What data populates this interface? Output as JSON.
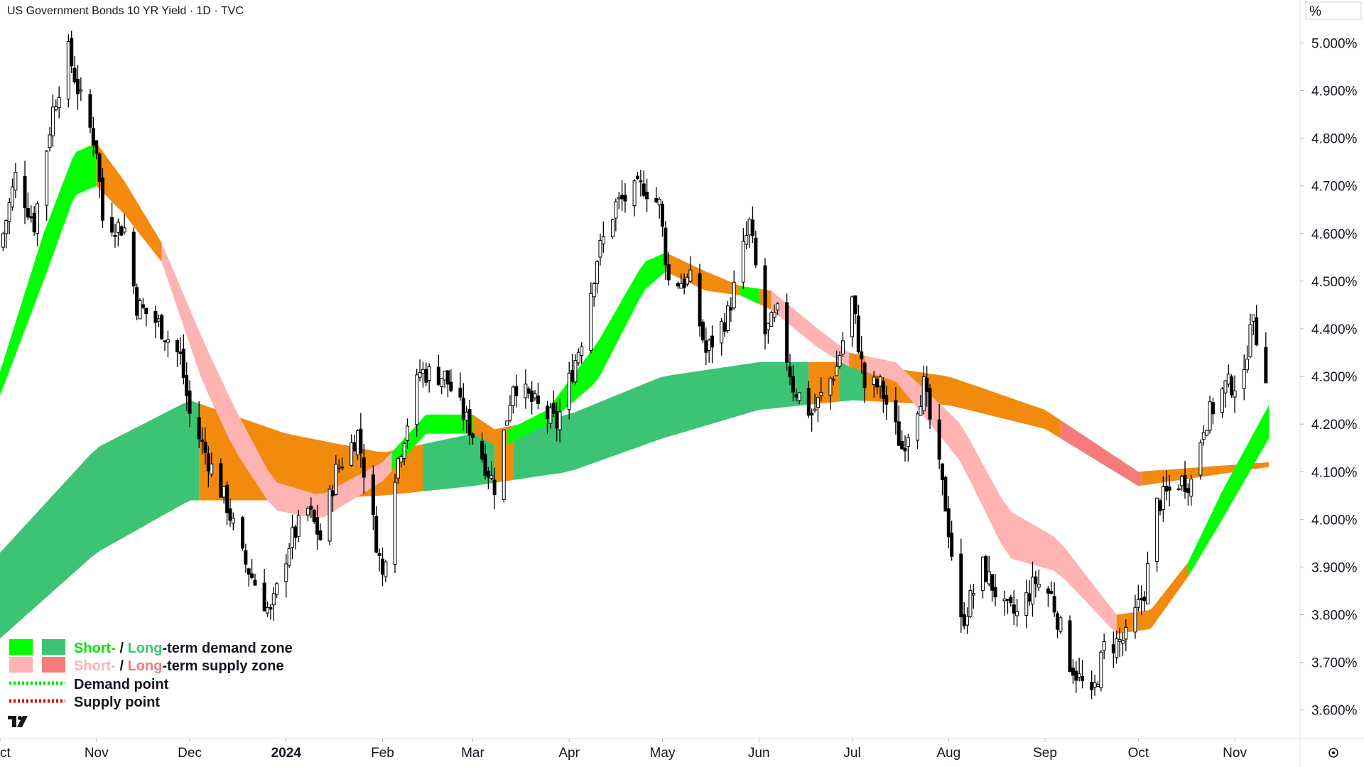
{
  "header": {
    "title": "US Government Bonds 10 YR Yield · 1D · TVC"
  },
  "price_axis": {
    "unit_label": "%"
  },
  "time_axis": {
    "labels": [
      "Oct",
      "Nov",
      "Dec",
      "2024",
      "Feb",
      "Mar",
      "Apr",
      "May",
      "Jun",
      "Jul",
      "Aug",
      "Sep",
      "Oct",
      "Nov"
    ]
  },
  "legend": {
    "demand_zone": {
      "short": "Short-",
      "sep": " / ",
      "long": "Long",
      "rest": "-term demand zone"
    },
    "supply_zone": {
      "short": "Short-",
      "sep": " / ",
      "long": "Long",
      "rest": "-term supply zone"
    },
    "demand_point": "Demand point",
    "supply_point": "Supply point"
  },
  "logo": {
    "text": "TV",
    "icon": "tradingview-logo"
  },
  "settings_icon": "gear-icon",
  "colors": {
    "short_demand": "#00ff00",
    "long_demand": "#3cc474",
    "short_supply": "#ffb3b3",
    "long_supply": "#f57a7a",
    "neutral": "#f28a0e",
    "candle_up": "#ffffff",
    "candle_down": "#000000"
  },
  "chart_data": {
    "type": "candlestick",
    "title": "US Government Bonds 10 YR Yield · 1D · TVC",
    "ylabel": "%",
    "ylim": [
      3.54,
      5.09
    ],
    "y_ticks": [
      5.0,
      4.9,
      4.8,
      4.7,
      4.6,
      4.5,
      4.4,
      4.3,
      4.2,
      4.1,
      4.0,
      3.9,
      3.8,
      3.7,
      3.6
    ],
    "y_tick_labels": [
      "5.000%",
      "4.900%",
      "4.800%",
      "4.700%",
      "4.600%",
      "4.500%",
      "4.400%",
      "4.300%",
      "4.200%",
      "4.100%",
      "4.000%",
      "3.900%",
      "3.800%",
      "3.700%",
      "3.600%"
    ],
    "x_ticks": [
      "2023-10-01",
      "2023-11-01",
      "2023-12-01",
      "2024-01-01",
      "2024-02-01",
      "2024-03-01",
      "2024-04-01",
      "2024-05-01",
      "2024-06-01",
      "2024-07-01",
      "2024-08-01",
      "2024-09-01",
      "2024-10-01",
      "2024-11-01"
    ],
    "x_tick_labels": [
      "Oct",
      "Nov",
      "Dec",
      "2024",
      "Feb",
      "Mar",
      "Apr",
      "May",
      "Jun",
      "Jul",
      "Aug",
      "Sep",
      "Oct",
      "Nov"
    ],
    "x_range": [
      "2023-10-01",
      "2024-11-22"
    ],
    "yield_path": [
      [
        "2023-10-01",
        4.57
      ],
      [
        "2023-10-06",
        4.72
      ],
      [
        "2023-10-12",
        4.62
      ],
      [
        "2023-10-18",
        4.86
      ],
      [
        "2023-10-23",
        4.98
      ],
      [
        "2023-10-27",
        4.88
      ],
      [
        "2023-11-01",
        4.78
      ],
      [
        "2023-11-03",
        4.63
      ],
      [
        "2023-11-10",
        4.61
      ],
      [
        "2023-11-14",
        4.45
      ],
      [
        "2023-11-21",
        4.41
      ],
      [
        "2023-11-28",
        4.34
      ],
      [
        "2023-12-01",
        4.22
      ],
      [
        "2023-12-06",
        4.14
      ],
      [
        "2023-12-13",
        4.03
      ],
      [
        "2023-12-18",
        3.92
      ],
      [
        "2023-12-27",
        3.8
      ],
      [
        "2024-01-02",
        3.95
      ],
      [
        "2024-01-08",
        4.02
      ],
      [
        "2024-01-12",
        3.96
      ],
      [
        "2024-01-17",
        4.1
      ],
      [
        "2024-01-24",
        4.18
      ],
      [
        "2024-02-01",
        3.88
      ],
      [
        "2024-02-05",
        4.1
      ],
      [
        "2024-02-13",
        4.31
      ],
      [
        "2024-02-21",
        4.3
      ],
      [
        "2024-03-01",
        4.18
      ],
      [
        "2024-03-08",
        4.07
      ],
      [
        "2024-03-14",
        4.29
      ],
      [
        "2024-03-21",
        4.24
      ],
      [
        "2024-03-28",
        4.2
      ],
      [
        "2024-04-05",
        4.38
      ],
      [
        "2024-04-10",
        4.55
      ],
      [
        "2024-04-16",
        4.66
      ],
      [
        "2024-04-25",
        4.7
      ],
      [
        "2024-04-30",
        4.66
      ],
      [
        "2024-05-03",
        4.5
      ],
      [
        "2024-05-10",
        4.5
      ],
      [
        "2024-05-15",
        4.35
      ],
      [
        "2024-05-22",
        4.43
      ],
      [
        "2024-05-29",
        4.62
      ],
      [
        "2024-06-03",
        4.39
      ],
      [
        "2024-06-07",
        4.43
      ],
      [
        "2024-06-12",
        4.28
      ],
      [
        "2024-06-18",
        4.22
      ],
      [
        "2024-06-26",
        4.32
      ],
      [
        "2024-07-01",
        4.46
      ],
      [
        "2024-07-05",
        4.28
      ],
      [
        "2024-07-10",
        4.28
      ],
      [
        "2024-07-17",
        4.15
      ],
      [
        "2024-07-24",
        4.28
      ],
      [
        "2024-07-31",
        4.03
      ],
      [
        "2024-08-05",
        3.78
      ],
      [
        "2024-08-12",
        3.9
      ],
      [
        "2024-08-19",
        3.81
      ],
      [
        "2024-08-23",
        3.8
      ],
      [
        "2024-08-29",
        3.87
      ],
      [
        "2024-09-03",
        3.84
      ],
      [
        "2024-09-09",
        3.7
      ],
      [
        "2024-09-16",
        3.62
      ],
      [
        "2024-09-20",
        3.73
      ],
      [
        "2024-09-27",
        3.75
      ],
      [
        "2024-10-03",
        3.85
      ],
      [
        "2024-10-07",
        4.03
      ],
      [
        "2024-10-14",
        4.08
      ],
      [
        "2024-10-18",
        4.08
      ],
      [
        "2024-10-22",
        4.2
      ],
      [
        "2024-10-29",
        4.28
      ],
      [
        "2024-11-04",
        4.29
      ],
      [
        "2024-11-06",
        4.43
      ],
      [
        "2024-11-11",
        4.31
      ]
    ],
    "series": [
      {
        "name": "Short-term zone",
        "color_segments": [
          {
            "zone": "short-term demand",
            "from": "2023-10-01",
            "to": "2023-11-01"
          },
          {
            "zone": "neutral",
            "from": "2023-11-01",
            "to": "2023-11-22"
          },
          {
            "zone": "short-term supply",
            "from": "2023-11-22",
            "to": "2024-02-04"
          },
          {
            "zone": "short-term demand",
            "from": "2024-02-04",
            "to": "2024-03-01"
          },
          {
            "zone": "neutral",
            "from": "2024-03-01",
            "to": "2024-03-12"
          },
          {
            "zone": "short-term demand",
            "from": "2024-03-12",
            "to": "2024-05-02"
          },
          {
            "zone": "neutral",
            "from": "2024-05-02",
            "to": "2024-05-26"
          },
          {
            "zone": "short-term demand",
            "from": "2024-05-26",
            "to": "2024-06-01"
          },
          {
            "zone": "neutral",
            "from": "2024-06-01",
            "to": "2024-06-05"
          },
          {
            "zone": "short-term supply",
            "from": "2024-06-05",
            "to": "2024-06-30"
          },
          {
            "zone": "neutral",
            "from": "2024-06-30",
            "to": "2024-07-05"
          },
          {
            "zone": "short-term supply",
            "from": "2024-07-05",
            "to": "2024-09-24"
          },
          {
            "zone": "neutral",
            "from": "2024-09-24",
            "to": "2024-10-17"
          },
          {
            "zone": "short-term demand",
            "from": "2024-10-17",
            "to": "2024-11-12"
          }
        ]
      },
      {
        "name": "Long-term zone",
        "color_segments": [
          {
            "zone": "long-term demand",
            "from": "2023-10-01",
            "to": "2023-12-04"
          },
          {
            "zone": "neutral",
            "from": "2023-12-04",
            "to": "2024-02-14"
          },
          {
            "zone": "long-term demand",
            "from": "2024-02-14",
            "to": "2024-03-08"
          },
          {
            "zone": "neutral",
            "from": "2024-03-08",
            "to": "2024-03-14"
          },
          {
            "zone": "long-term demand",
            "from": "2024-03-14",
            "to": "2024-06-17"
          },
          {
            "zone": "neutral",
            "from": "2024-06-17",
            "to": "2024-06-27"
          },
          {
            "zone": "long-term demand",
            "from": "2024-06-27",
            "to": "2024-07-05"
          },
          {
            "zone": "neutral",
            "from": "2024-07-05",
            "to": "2024-09-06"
          },
          {
            "zone": "long-term supply",
            "from": "2024-09-06",
            "to": "2024-10-02"
          },
          {
            "zone": "neutral",
            "from": "2024-10-02",
            "to": "2024-11-12"
          }
        ]
      }
    ],
    "short_zone_band": [
      [
        "2023-10-01",
        4.26,
        4.31
      ],
      [
        "2023-10-15",
        4.5,
        4.6
      ],
      [
        "2023-10-25",
        4.68,
        4.77
      ],
      [
        "2023-11-01",
        4.7,
        4.79
      ],
      [
        "2023-11-10",
        4.64,
        4.71
      ],
      [
        "2023-11-22",
        4.54,
        4.58
      ],
      [
        "2023-12-05",
        4.29,
        4.38
      ],
      [
        "2023-12-15",
        4.15,
        4.24
      ],
      [
        "2023-12-28",
        4.02,
        4.08
      ],
      [
        "2024-01-12",
        4.0,
        4.05
      ],
      [
        "2024-02-01",
        4.08,
        4.12
      ],
      [
        "2024-02-15",
        4.18,
        4.22
      ],
      [
        "2024-03-01",
        4.18,
        4.22
      ],
      [
        "2024-03-10",
        4.15,
        4.18
      ],
      [
        "2024-03-25",
        4.2,
        4.23
      ],
      [
        "2024-04-10",
        4.29,
        4.37
      ],
      [
        "2024-04-25",
        4.48,
        4.54
      ],
      [
        "2024-05-02",
        4.52,
        4.56
      ],
      [
        "2024-05-15",
        4.48,
        4.52
      ],
      [
        "2024-05-26",
        4.47,
        4.49
      ],
      [
        "2024-06-05",
        4.44,
        4.48
      ],
      [
        "2024-06-20",
        4.36,
        4.4
      ],
      [
        "2024-06-30",
        4.32,
        4.35
      ],
      [
        "2024-07-15",
        4.29,
        4.33
      ],
      [
        "2024-08-05",
        4.12,
        4.2
      ],
      [
        "2024-08-20",
        3.92,
        4.02
      ],
      [
        "2024-09-05",
        3.89,
        3.96
      ],
      [
        "2024-09-24",
        3.76,
        3.8
      ],
      [
        "2024-10-05",
        3.77,
        3.81
      ],
      [
        "2024-10-17",
        3.88,
        3.91
      ],
      [
        "2024-10-28",
        4.0,
        4.06
      ],
      [
        "2024-11-12",
        4.17,
        4.24
      ]
    ],
    "long_zone_band": [
      [
        "2023-10-01",
        3.75,
        3.93
      ],
      [
        "2023-11-01",
        3.93,
        4.15
      ],
      [
        "2023-12-01",
        4.04,
        4.25
      ],
      [
        "2024-01-01",
        4.04,
        4.18
      ],
      [
        "2024-02-01",
        4.05,
        4.14
      ],
      [
        "2024-03-01",
        4.07,
        4.18
      ],
      [
        "2024-04-01",
        4.1,
        4.22
      ],
      [
        "2024-05-01",
        4.17,
        4.3
      ],
      [
        "2024-06-01",
        4.23,
        4.33
      ],
      [
        "2024-07-01",
        4.25,
        4.33
      ],
      [
        "2024-08-01",
        4.24,
        4.3
      ],
      [
        "2024-09-01",
        4.19,
        4.23
      ],
      [
        "2024-10-01",
        4.07,
        4.1
      ],
      [
        "2024-11-12",
        4.11,
        4.12
      ]
    ]
  }
}
